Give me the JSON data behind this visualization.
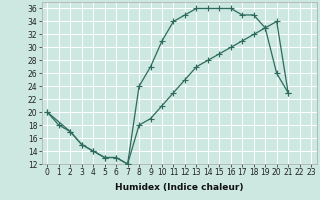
{
  "xlabel": "Humidex (Indice chaleur)",
  "bg_color": "#cce8e0",
  "grid_color": "#ffffff",
  "line_color": "#2e6b5e",
  "line1_x": [
    0,
    1,
    2,
    3,
    4,
    5,
    6,
    7,
    8,
    9,
    10,
    11,
    12,
    13,
    14,
    15,
    16,
    17,
    18,
    19,
    20,
    21
  ],
  "line1_y": [
    20,
    18,
    17,
    15,
    14,
    13,
    13,
    12,
    24,
    27,
    31,
    34,
    35,
    36,
    36,
    36,
    36,
    35,
    35,
    33,
    26,
    23
  ],
  "line2_x": [
    0,
    2,
    3,
    4,
    5,
    6,
    7,
    8,
    9,
    10,
    11,
    12,
    13,
    14,
    15,
    16,
    17,
    18,
    19,
    20,
    21
  ],
  "line2_y": [
    20,
    17,
    15,
    14,
    13,
    13,
    12,
    18,
    19,
    21,
    23,
    25,
    27,
    28,
    29,
    30,
    31,
    32,
    33,
    34,
    23
  ],
  "xlim": [
    -0.5,
    23.5
  ],
  "ylim": [
    12,
    37
  ],
  "xticks": [
    0,
    1,
    2,
    3,
    4,
    5,
    6,
    7,
    8,
    9,
    10,
    11,
    12,
    13,
    14,
    15,
    16,
    17,
    18,
    19,
    20,
    21,
    22,
    23
  ],
  "yticks": [
    12,
    14,
    16,
    18,
    20,
    22,
    24,
    26,
    28,
    30,
    32,
    34,
    36
  ],
  "tick_fontsize": 5.5,
  "xlabel_fontsize": 6.5
}
